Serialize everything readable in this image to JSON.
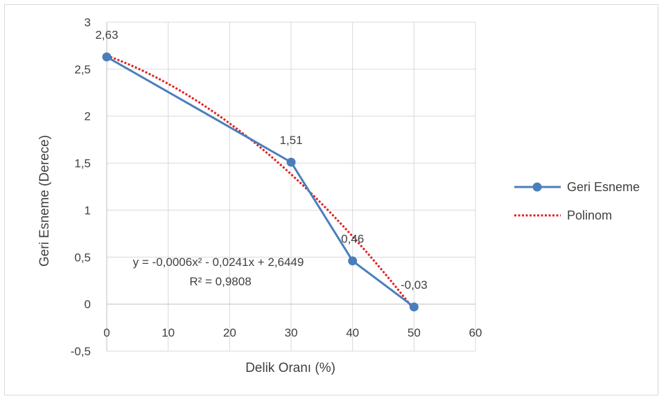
{
  "chart_data": {
    "type": "line",
    "title": "",
    "xlabel": "Delik Oranı (%)",
    "ylabel": "Geri Esneme (Derece)",
    "xlim": [
      0,
      60
    ],
    "ylim": [
      -0.5,
      3
    ],
    "x_ticks": [
      0,
      10,
      20,
      30,
      40,
      50,
      60
    ],
    "x_tick_labels": [
      "0",
      "10",
      "20",
      "30",
      "40",
      "50",
      "60"
    ],
    "y_ticks": [
      -0.5,
      0,
      0.5,
      1,
      1.5,
      2,
      2.5,
      3
    ],
    "y_tick_labels": [
      "-0,5",
      "0",
      "0,5",
      "1",
      "1,5",
      "2",
      "2,5",
      "3"
    ],
    "grid": true,
    "legend_position": "right",
    "series": [
      {
        "name": "Geri Esneme",
        "color": "#4a7ebb",
        "style": "solid-with-markers",
        "x": [
          0,
          30,
          40,
          50
        ],
        "y": [
          2.63,
          1.51,
          0.46,
          -0.03
        ],
        "data_labels": [
          "2,63",
          "1,51",
          "0,46",
          "-0,03"
        ]
      },
      {
        "name": "Polinom",
        "color": "#e02020",
        "style": "dotted",
        "type": "polynomial-trendline",
        "coefficients": {
          "a": -0.0006,
          "b": -0.0241,
          "c": 2.6449
        },
        "x_range": [
          0,
          50
        ]
      }
    ],
    "annotations": {
      "equation": "y = -0,0006x² - 0,0241x + 2,6449",
      "r_squared": "R² = 0,9808"
    }
  }
}
